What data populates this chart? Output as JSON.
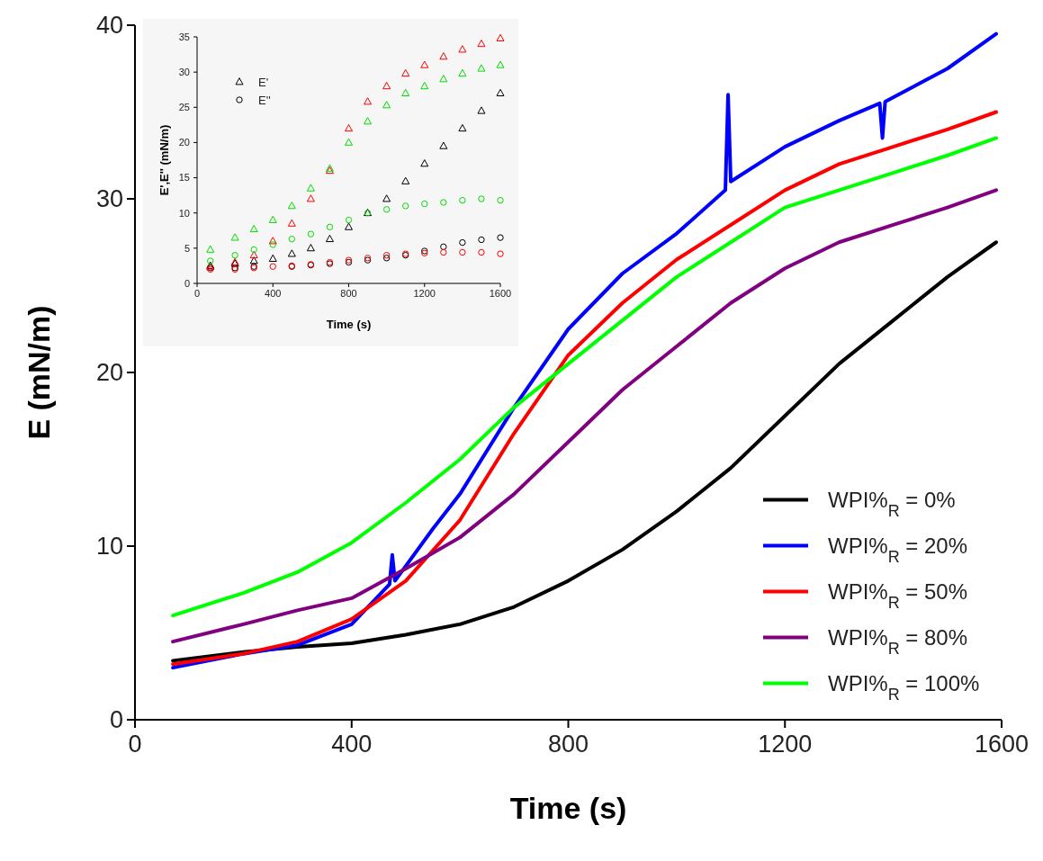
{
  "chart_data": [
    {
      "type": "line",
      "xlabel": "Time (s)",
      "ylabel": "E (mN/m)",
      "xlim": [
        0,
        1600
      ],
      "ylim": [
        0,
        40
      ],
      "xticks": [
        0,
        400,
        800,
        1200,
        1600
      ],
      "yticks": [
        0,
        10,
        20,
        30,
        40
      ],
      "legend": "bottom right",
      "grid": false,
      "line_style": "solid",
      "series": [
        {
          "name": "WPI%$_{R}$ = 0%",
          "color": "#000000",
          "x": [
            70,
            200,
            300,
            400,
            500,
            600,
            700,
            800,
            900,
            1000,
            1100,
            1200,
            1300,
            1400,
            1500,
            1590
          ],
          "values": [
            3.4,
            3.9,
            4.2,
            4.4,
            4.9,
            5.5,
            6.5,
            8,
            9.8,
            12,
            14.5,
            17.5,
            20.5,
            23,
            25.5,
            27.5
          ]
        },
        {
          "name": "WPI%$_{R}$ = 20%",
          "color": "#0000ff",
          "x": [
            70,
            200,
            300,
            400,
            470,
            475,
            480,
            550,
            600,
            700,
            800,
            900,
            1000,
            1090,
            1095,
            1100,
            1200,
            1300,
            1375,
            1380,
            1385,
            1500,
            1590
          ],
          "values": [
            3.0,
            3.8,
            4.3,
            5.5,
            7.8,
            9.5,
            8,
            11,
            13,
            18,
            22.5,
            25.7,
            28,
            30.5,
            36,
            31,
            33,
            34.5,
            35.5,
            33.5,
            35.6,
            37.5,
            39.5
          ]
        },
        {
          "name": "WPI%$_{R}$ = 50%",
          "color": "#ff0000",
          "x": [
            70,
            200,
            300,
            400,
            500,
            600,
            700,
            800,
            900,
            1000,
            1100,
            1200,
            1300,
            1400,
            1500,
            1590
          ],
          "values": [
            3.2,
            3.8,
            4.5,
            5.8,
            8,
            11.5,
            16.5,
            21,
            24,
            26.5,
            28.5,
            30.5,
            32,
            33,
            34,
            35
          ]
        },
        {
          "name": "WPI%$_{R}$ = 80%",
          "color": "#800080",
          "x": [
            70,
            200,
            300,
            400,
            500,
            600,
            700,
            800,
            900,
            1000,
            1100,
            1200,
            1300,
            1400,
            1500,
            1590
          ],
          "values": [
            4.5,
            5.5,
            6.3,
            7,
            8.7,
            10.5,
            13,
            16,
            19,
            21.5,
            24,
            26,
            27.5,
            28.5,
            29.5,
            30.5
          ]
        },
        {
          "name": "WPI%$_{R}$ = 100%",
          "color": "#00ff00",
          "x": [
            70,
            200,
            300,
            400,
            500,
            600,
            700,
            800,
            900,
            1000,
            1100,
            1200,
            1300,
            1400,
            1500,
            1590
          ],
          "values": [
            6.0,
            7.3,
            8.5,
            10.2,
            12.5,
            15,
            18,
            20.5,
            23,
            25.5,
            27.5,
            29.5,
            30.5,
            31.5,
            32.5,
            33.5
          ]
        }
      ]
    },
    {
      "type": "scatter",
      "xlabel": "Time (s)",
      "ylabel": "E',E'' (mN/m)",
      "xlim": [
        0,
        1600
      ],
      "ylim": [
        0,
        35
      ],
      "xticks": [
        0,
        400,
        800,
        1200,
        1600
      ],
      "yticks": [
        0,
        5,
        10,
        15,
        20,
        25,
        30,
        35
      ],
      "legend": "top left",
      "grid": false,
      "series": [
        {
          "name": "E'",
          "color": "#000000",
          "marker": "triangle",
          "x": [
            70,
            200,
            300,
            400,
            500,
            600,
            700,
            800,
            900,
            1000,
            1100,
            1200,
            1300,
            1400,
            1500,
            1600
          ],
          "values": [
            2.5,
            2.8,
            3.2,
            3.5,
            4.2,
            5,
            6.3,
            8,
            10,
            12,
            14.5,
            17,
            19.5,
            22,
            24.5,
            27
          ]
        },
        {
          "name": "E''",
          "color": "#000000",
          "marker": "circle",
          "x": [
            70,
            200,
            300,
            400,
            500,
            600,
            700,
            800,
            900,
            1000,
            1100,
            1200,
            1300,
            1400,
            1500,
            1600
          ],
          "values": [
            2.2,
            2.2,
            2.4,
            null,
            2.4,
            2.6,
            2.8,
            3,
            3.3,
            3.6,
            4,
            4.6,
            5.2,
            5.8,
            6.2,
            6.5
          ]
        },
        {
          "color": "#ff0000",
          "marker": "triangle",
          "x": [
            70,
            200,
            300,
            400,
            500,
            600,
            700,
            800,
            900,
            1000,
            1100,
            1200,
            1300,
            1400,
            1500,
            1600
          ],
          "values": [
            2.3,
            3,
            4,
            6,
            8.5,
            12,
            16,
            22,
            25.8,
            28,
            29.8,
            31,
            32.2,
            33.2,
            34,
            34.8
          ]
        },
        {
          "color": "#00dd00",
          "marker": "triangle",
          "x": [
            70,
            200,
            300,
            400,
            500,
            600,
            700,
            800,
            900,
            1000,
            1100,
            1200,
            1300,
            1400,
            1500,
            1600
          ],
          "values": [
            4.8,
            6.5,
            7.7,
            9,
            11,
            13.5,
            16.3,
            20,
            23,
            25.3,
            27,
            28,
            29,
            29.8,
            30.5,
            31
          ]
        },
        {
          "color": "#ff0000",
          "marker": "circle",
          "x": [
            70,
            200,
            300,
            400,
            500,
            600,
            700,
            800,
            900,
            1000,
            1100,
            1200,
            1300,
            1400,
            1500,
            1600
          ],
          "values": [
            2,
            2,
            2.2,
            2.4,
            2.5,
            2.7,
            3,
            3.3,
            3.6,
            4,
            4.2,
            4.3,
            4.4,
            4.4,
            4.4,
            4.2
          ]
        },
        {
          "color": "#00dd00",
          "marker": "circle",
          "x": [
            70,
            200,
            300,
            400,
            500,
            600,
            700,
            800,
            900,
            1000,
            1100,
            1200,
            1300,
            1400,
            1500,
            1600
          ],
          "values": [
            3.2,
            4,
            4.8,
            5.5,
            6.3,
            7,
            8,
            9,
            10,
            10.5,
            11,
            11.3,
            11.5,
            11.8,
            12,
            11.8
          ]
        }
      ]
    }
  ]
}
